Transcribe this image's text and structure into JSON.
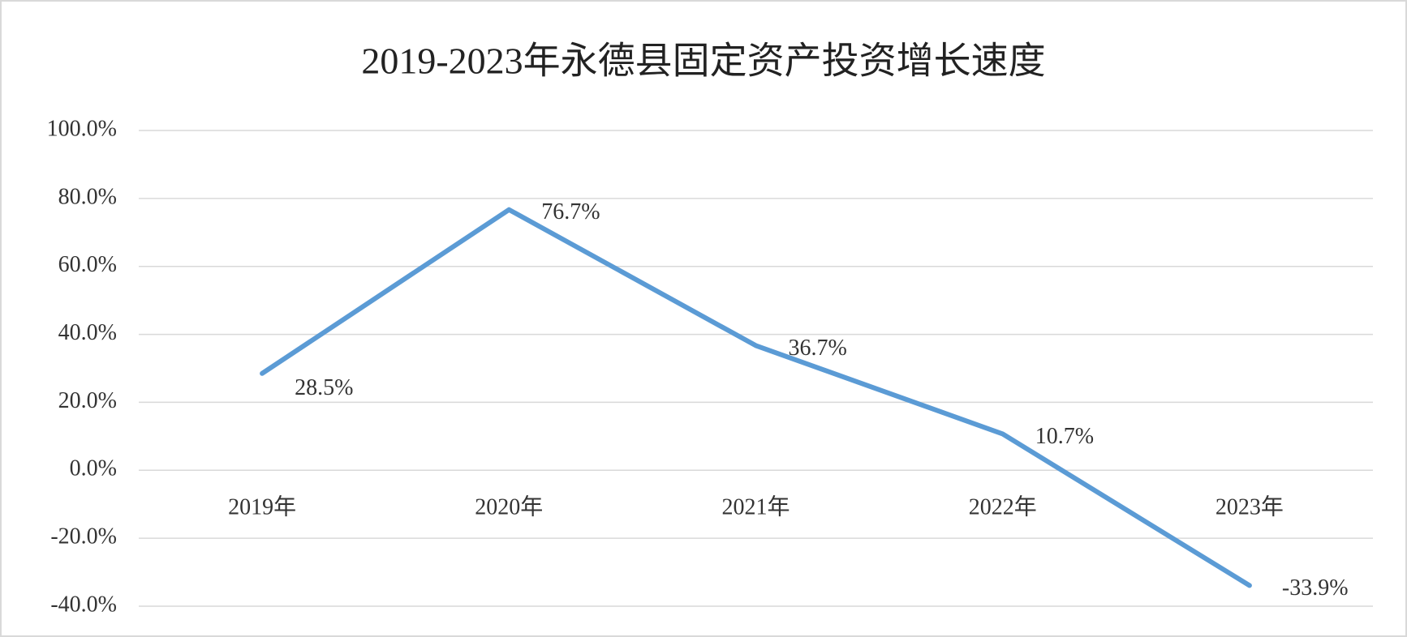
{
  "chart_data": {
    "type": "line",
    "title": "2019-2023年永德县固定资产投资增长速度",
    "categories": [
      "2019年",
      "2020年",
      "2021年",
      "2022年",
      "2023年"
    ],
    "series": [
      {
        "color": "#5b9bd5",
        "values": [
          28.5,
          76.7,
          36.7,
          10.7,
          -33.9
        ],
        "value_labels": [
          "28.5%",
          "76.7%",
          "36.7%",
          "10.7%",
          "-33.9%"
        ]
      }
    ],
    "ylim": [
      -40,
      100
    ],
    "yticks": [
      {
        "value": -40,
        "label": "-40.0%"
      },
      {
        "value": -20,
        "label": "-20.0%"
      },
      {
        "value": 0,
        "label": "0.0%"
      },
      {
        "value": 20,
        "label": "20.0%"
      },
      {
        "value": 40,
        "label": "40.0%"
      },
      {
        "value": 60,
        "label": "60.0%"
      },
      {
        "value": 80,
        "label": "80.0%"
      },
      {
        "value": 100,
        "label": "100.0%"
      }
    ],
    "grid": true
  }
}
